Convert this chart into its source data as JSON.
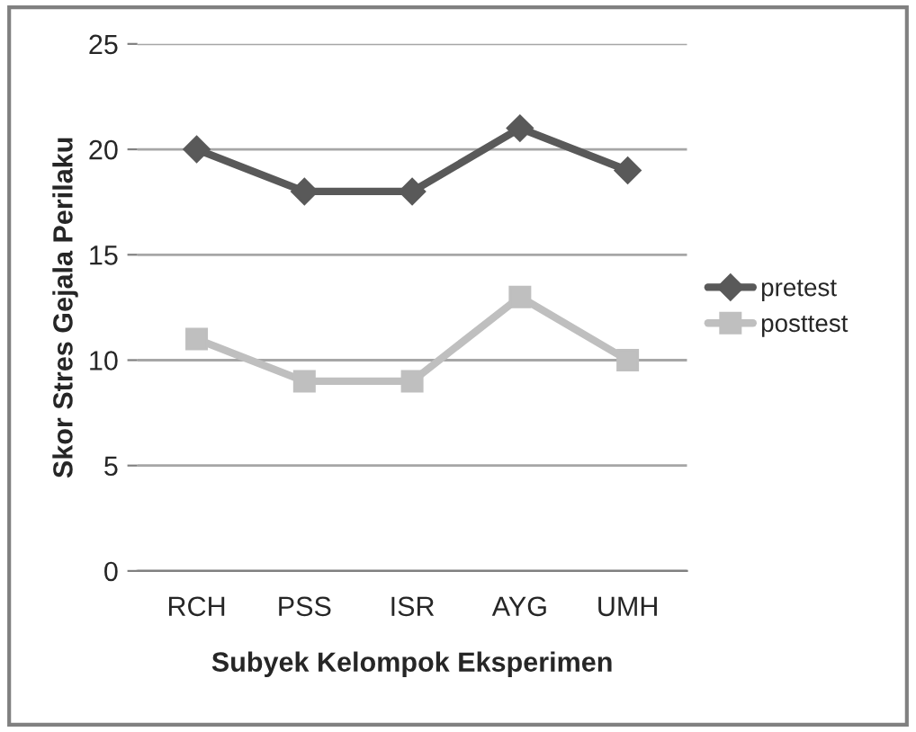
{
  "chart_data": {
    "type": "line",
    "xlabel": "Subyek Kelompok Eksperimen",
    "ylabel": "Skor Stres Gejala Perilaku",
    "categories": [
      "RCH",
      "PSS",
      "ISR",
      "AYG",
      "UMH"
    ],
    "series": [
      {
        "name": "pretest",
        "color": "#595959",
        "marker": "diamond",
        "values": [
          20,
          18,
          18,
          21,
          19
        ]
      },
      {
        "name": "posttest",
        "color": "#bfbfbf",
        "marker": "square",
        "values": [
          11,
          9,
          9,
          13,
          10
        ]
      }
    ],
    "ylim": [
      0,
      25
    ],
    "yticks": [
      0,
      5,
      10,
      15,
      20,
      25
    ],
    "grid": "y",
    "legend": "right"
  }
}
